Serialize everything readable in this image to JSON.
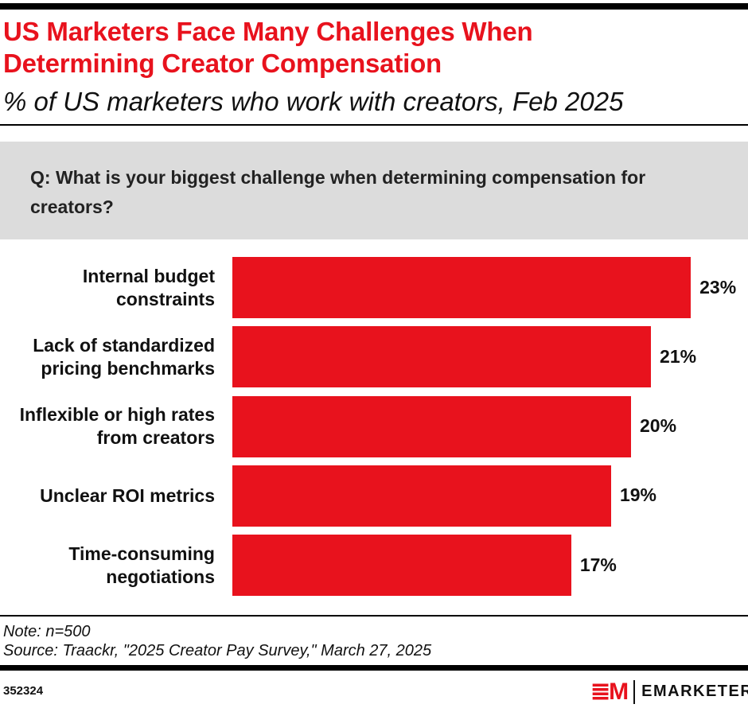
{
  "header": {
    "title_line1": "US Marketers Face Many Challenges When",
    "title_line2": "Determining Creator Compensation",
    "subtitle": "% of US marketers who work with creators, Feb 2025"
  },
  "question": "Q: What is your biggest challenge when determining compensation for creators?",
  "chart_data": {
    "type": "bar",
    "orientation": "horizontal",
    "categories": [
      [
        "Internal budget",
        "constraints"
      ],
      [
        "Lack of standardized",
        "pricing benchmarks"
      ],
      [
        "Inflexible or high rates",
        "from creators"
      ],
      [
        "Unclear ROI metrics"
      ],
      [
        "Time-consuming",
        "negotiations"
      ]
    ],
    "values": [
      23,
      21,
      20,
      19,
      17
    ],
    "value_labels": [
      "23%",
      "21%",
      "20%",
      "19%",
      "17%"
    ],
    "bar_color": "#e8121d",
    "grid": false
  },
  "footer": {
    "note": "Note: n=500",
    "source": "Source: Traackr, \"2025 Creator Pay Survey,\" March 27, 2025",
    "id": "352324",
    "logo_mark": "EM",
    "logo_word": "EMARKETER"
  }
}
